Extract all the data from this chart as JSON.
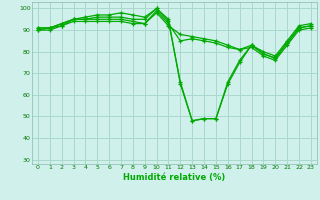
{
  "xlabel": "Humidité relative (%)",
  "xlim": [
    -0.5,
    23.5
  ],
  "ylim": [
    28,
    103
  ],
  "xticks": [
    0,
    1,
    2,
    3,
    4,
    5,
    6,
    7,
    8,
    9,
    10,
    11,
    12,
    13,
    14,
    15,
    16,
    17,
    18,
    19,
    20,
    21,
    22,
    23
  ],
  "yticks": [
    30,
    40,
    50,
    60,
    70,
    80,
    90,
    100
  ],
  "background_color": "#d0f0ec",
  "grid_color": "#aad8cc",
  "line_color": "#00aa00",
  "curves": [
    [
      91,
      91,
      93,
      95,
      95,
      96,
      96,
      96,
      95,
      95,
      100,
      95,
      65,
      48,
      49,
      49,
      65,
      75,
      83,
      79,
      77,
      84,
      91,
      92
    ],
    [
      91,
      91,
      93,
      95,
      96,
      97,
      97,
      98,
      97,
      96,
      100,
      94,
      66,
      48,
      49,
      49,
      66,
      76,
      83,
      80,
      78,
      85,
      92,
      93
    ],
    [
      90,
      90,
      92,
      95,
      95,
      95,
      95,
      95,
      94,
      93,
      99,
      93,
      85,
      86,
      85,
      84,
      82,
      81,
      83,
      79,
      77,
      84,
      91,
      92
    ],
    [
      90,
      91,
      92,
      94,
      94,
      94,
      94,
      94,
      93,
      93,
      98,
      92,
      88,
      87,
      86,
      85,
      83,
      81,
      82,
      78,
      76,
      83,
      90,
      91
    ]
  ]
}
